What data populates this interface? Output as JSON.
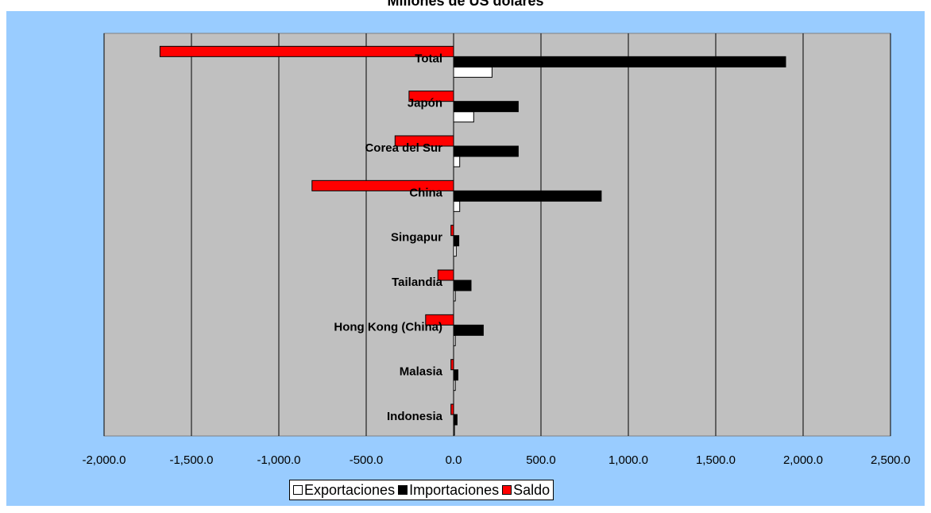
{
  "chart_data": {
    "type": "bar",
    "orientation": "horizontal",
    "title": "Millones de US dólares",
    "categories": [
      "Total",
      "Japón",
      "Corea del Sur",
      "China",
      "Singapur",
      "Tailandia",
      "Hong Kong (China)",
      "Malasia",
      "Indonesia"
    ],
    "series": [
      {
        "name": "Exportaciones",
        "color": "#ffffff",
        "values": [
          220,
          115,
          35,
          35,
          15,
          10,
          10,
          10,
          5
        ]
      },
      {
        "name": "Importaciones",
        "color": "#000000",
        "values": [
          1900,
          370,
          370,
          845,
          30,
          100,
          170,
          25,
          20
        ]
      },
      {
        "name": "Saldo",
        "color": "#ff0000",
        "values": [
          -1680,
          -255,
          -335,
          -810,
          -15,
          -90,
          -160,
          -15,
          -15
        ]
      }
    ],
    "xlim": [
      -2000,
      2500
    ],
    "xticks": [
      "-2,000.0",
      "-1,500.0",
      "-1,000.0",
      "-500.0",
      "0.0",
      "500.0",
      "1,000.0",
      "1,500.0",
      "2,000.0",
      "2,500.0"
    ],
    "grid": true,
    "legend_position": "bottom",
    "plot_background": "#c0c0c0",
    "chart_background": "#99ccff"
  }
}
